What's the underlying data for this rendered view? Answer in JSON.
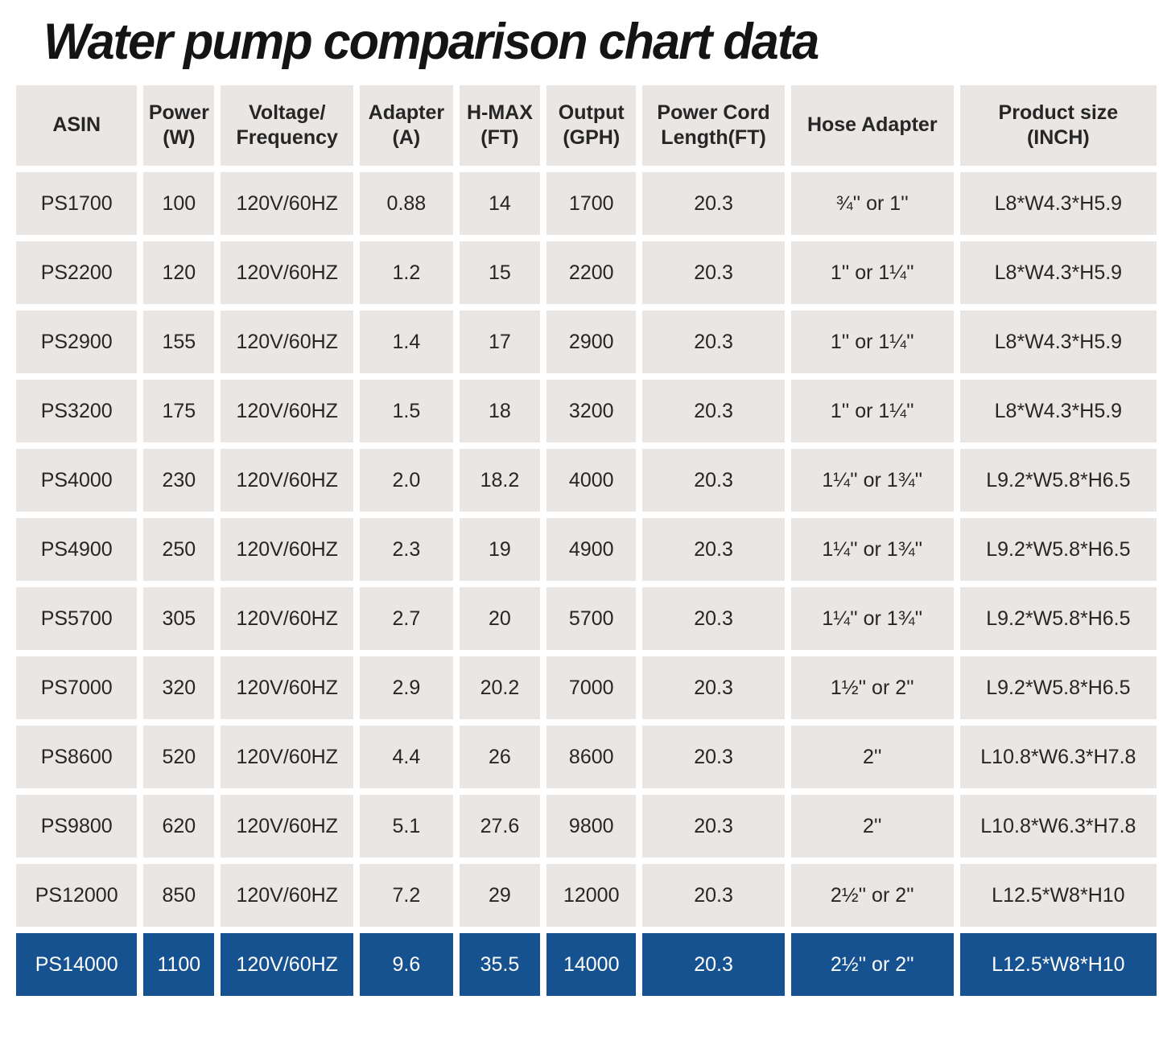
{
  "title": "Water pump comparison chart data",
  "colors": {
    "cell_bg": "#e9e6e4",
    "cell_text": "#262626",
    "highlight_row_bg": "#175290",
    "highlight_row_text": "#ffffff"
  },
  "chart_data": {
    "type": "table",
    "title": "Water pump comparison chart data",
    "columns": [
      "ASIN",
      "Power\n(W)",
      "Voltage/\nFrequency",
      "Adapter\n(A)",
      "H-MAX\n(FT)",
      "Output\n(GPH)",
      "Power Cord\nLength(FT)",
      "Hose Adapter",
      "Product size\n(INCH)"
    ],
    "rows": [
      [
        "PS1700",
        "100",
        "120V/60HZ",
        "0.88",
        "14",
        "1700",
        "20.3",
        "¾'' or 1''",
        "L8*W4.3*H5.9"
      ],
      [
        "PS2200",
        "120",
        "120V/60HZ",
        "1.2",
        "15",
        "2200",
        "20.3",
        "1'' or 1¼''",
        "L8*W4.3*H5.9"
      ],
      [
        "PS2900",
        "155",
        "120V/60HZ",
        "1.4",
        "17",
        "2900",
        "20.3",
        "1'' or 1¼''",
        "L8*W4.3*H5.9"
      ],
      [
        "PS3200",
        "175",
        "120V/60HZ",
        "1.5",
        "18",
        "3200",
        "20.3",
        "1'' or 1¼''",
        "L8*W4.3*H5.9"
      ],
      [
        "PS4000",
        "230",
        "120V/60HZ",
        "2.0",
        "18.2",
        "4000",
        "20.3",
        "1¼'' or 1¾''",
        "L9.2*W5.8*H6.5"
      ],
      [
        "PS4900",
        "250",
        "120V/60HZ",
        "2.3",
        "19",
        "4900",
        "20.3",
        "1¼'' or 1¾''",
        "L9.2*W5.8*H6.5"
      ],
      [
        "PS5700",
        "305",
        "120V/60HZ",
        "2.7",
        "20",
        "5700",
        "20.3",
        "1¼'' or 1¾''",
        "L9.2*W5.8*H6.5"
      ],
      [
        "PS7000",
        "320",
        "120V/60HZ",
        "2.9",
        "20.2",
        "7000",
        "20.3",
        "1½'' or 2''",
        "L9.2*W5.8*H6.5"
      ],
      [
        "PS8600",
        "520",
        "120V/60HZ",
        "4.4",
        "26",
        "8600",
        "20.3",
        "2''",
        "L10.8*W6.3*H7.8"
      ],
      [
        "PS9800",
        "620",
        "120V/60HZ",
        "5.1",
        "27.6",
        "9800",
        "20.3",
        "2''",
        "L10.8*W6.3*H7.8"
      ],
      [
        "PS12000",
        "850",
        "120V/60HZ",
        "7.2",
        "29",
        "12000",
        "20.3",
        "2½'' or 2''",
        "L12.5*W8*H10"
      ],
      [
        "PS14000",
        "1100",
        "120V/60HZ",
        "9.6",
        "35.5",
        "14000",
        "20.3",
        "2½'' or 2''",
        "L12.5*W8*H10"
      ]
    ],
    "highlight_row_index": 11,
    "layout": {
      "legend": "none",
      "grid": "white-gaps-between-cells",
      "header_position": "top"
    }
  }
}
